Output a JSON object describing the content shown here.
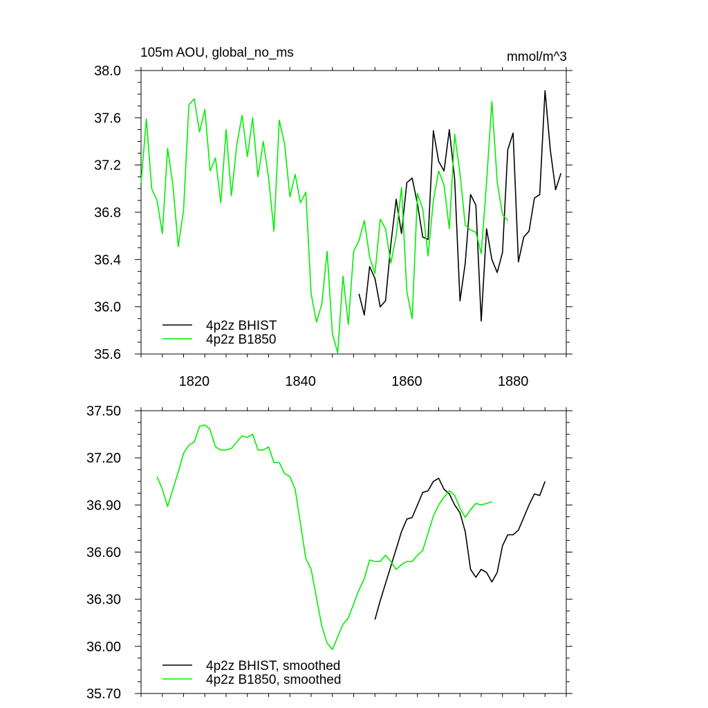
{
  "chart_data": [
    {
      "type": "line",
      "title_left": "105m AOU, global_no_ms",
      "title_right": "mmol/m^3",
      "xlim": [
        1810,
        1890
      ],
      "ylim": [
        35.6,
        38.0
      ],
      "xticks": [
        1820,
        1840,
        1860,
        1880
      ],
      "xtick_labels": [
        "1820",
        "1840",
        "1860",
        "1880"
      ],
      "yticks": [
        35.6,
        36.0,
        36.4,
        36.8,
        37.2,
        37.6,
        38.0
      ],
      "ytick_labels": [
        "35.6",
        "36.0",
        "36.4",
        "36.8",
        "37.2",
        "37.6",
        "38.0"
      ],
      "legend_position": "bottom-left",
      "grid": false,
      "series": [
        {
          "name": "4p2z BHIST",
          "color": "#000000",
          "x": [
            1851,
            1852,
            1853,
            1854,
            1855,
            1856,
            1857,
            1858,
            1859,
            1860,
            1861,
            1862,
            1863,
            1864,
            1865,
            1866,
            1867,
            1868,
            1869,
            1870,
            1871,
            1872,
            1873,
            1874,
            1875,
            1876,
            1877,
            1878,
            1879,
            1880,
            1881,
            1882,
            1883,
            1884,
            1885,
            1886,
            1887,
            1888,
            1889
          ],
          "values": [
            36.11,
            35.93,
            36.34,
            36.24,
            36.0,
            36.05,
            36.53,
            36.91,
            36.62,
            37.05,
            37.09,
            36.87,
            36.59,
            36.57,
            37.49,
            37.23,
            37.15,
            37.5,
            37.08,
            36.05,
            36.37,
            36.95,
            36.86,
            35.88,
            36.66,
            36.4,
            36.29,
            36.46,
            37.33,
            37.47,
            36.38,
            36.59,
            36.64,
            36.92,
            36.95,
            37.83,
            37.33,
            36.99,
            37.13
          ]
        },
        {
          "name": "4p2z B1850",
          "color": "#00ee00",
          "x": [
            1810,
            1811,
            1812,
            1813,
            1814,
            1815,
            1816,
            1817,
            1818,
            1819,
            1820,
            1821,
            1822,
            1823,
            1824,
            1825,
            1826,
            1827,
            1828,
            1829,
            1830,
            1831,
            1832,
            1833,
            1834,
            1835,
            1836,
            1837,
            1838,
            1839,
            1840,
            1841,
            1842,
            1843,
            1844,
            1845,
            1846,
            1847,
            1848,
            1849,
            1850,
            1851,
            1852,
            1853,
            1854,
            1855,
            1856,
            1857,
            1858,
            1859,
            1860,
            1861,
            1862,
            1863,
            1864,
            1865,
            1866,
            1867,
            1868,
            1869,
            1870,
            1871,
            1872,
            1873,
            1874,
            1875,
            1876,
            1877,
            1878,
            1879
          ],
          "values": [
            37.05,
            37.59,
            37.0,
            36.9,
            36.62,
            37.34,
            37.03,
            36.51,
            36.82,
            37.71,
            37.76,
            37.48,
            37.67,
            37.15,
            37.26,
            36.88,
            37.5,
            36.94,
            37.37,
            37.62,
            37.27,
            37.6,
            37.1,
            37.4,
            37.09,
            36.64,
            37.58,
            37.38,
            36.93,
            37.12,
            36.88,
            36.97,
            36.11,
            35.87,
            36.02,
            36.47,
            35.77,
            35.61,
            36.26,
            35.85,
            36.47,
            36.56,
            36.73,
            36.42,
            36.28,
            36.74,
            36.66,
            36.37,
            36.6,
            37.01,
            36.13,
            35.9,
            36.96,
            36.83,
            36.43,
            36.9,
            37.15,
            37.03,
            36.66,
            37.46,
            37.13,
            36.69,
            36.65,
            36.63,
            36.45,
            37.05,
            37.74,
            37.06,
            36.78,
            36.73
          ]
        }
      ]
    },
    {
      "type": "line",
      "xlim": [
        1810,
        1890
      ],
      "ylim": [
        35.7,
        37.5
      ],
      "xticks": [
        1820,
        1840,
        1860,
        1880
      ],
      "yticks": [
        35.7,
        36.0,
        36.3,
        36.6,
        36.9,
        37.2,
        37.5
      ],
      "ytick_labels": [
        "35.70",
        "36.00",
        "36.30",
        "36.60",
        "36.90",
        "37.20",
        "37.50"
      ],
      "legend_position": "bottom-left",
      "grid": false,
      "series": [
        {
          "name": "4p2z BHIST, smoothed",
          "color": "#000000",
          "x": [
            1854,
            1855,
            1856,
            1857,
            1858,
            1859,
            1860,
            1861,
            1862,
            1863,
            1864,
            1865,
            1866,
            1867,
            1868,
            1869,
            1870,
            1871,
            1872,
            1873,
            1874,
            1875,
            1876,
            1877,
            1878,
            1879,
            1880,
            1881,
            1882,
            1883,
            1884,
            1885,
            1886
          ],
          "values": [
            36.17,
            36.29,
            36.4,
            36.51,
            36.62,
            36.73,
            36.81,
            36.82,
            36.9,
            36.98,
            36.99,
            37.05,
            37.07,
            37.0,
            36.97,
            36.9,
            36.85,
            36.73,
            36.49,
            36.44,
            36.49,
            36.47,
            36.41,
            36.47,
            36.64,
            36.71,
            36.71,
            36.74,
            36.82,
            36.9,
            36.97,
            36.96,
            37.05
          ]
        },
        {
          "name": "4p2z B1850, smoothed",
          "color": "#00ee00",
          "x": [
            1813,
            1814,
            1815,
            1816,
            1817,
            1818,
            1819,
            1820,
            1821,
            1822,
            1823,
            1824,
            1825,
            1826,
            1827,
            1828,
            1829,
            1830,
            1831,
            1832,
            1833,
            1834,
            1835,
            1836,
            1837,
            1838,
            1839,
            1840,
            1841,
            1842,
            1843,
            1844,
            1845,
            1846,
            1847,
            1848,
            1849,
            1850,
            1851,
            1852,
            1853,
            1854,
            1855,
            1856,
            1857,
            1858,
            1859,
            1860,
            1861,
            1862,
            1863,
            1864,
            1865,
            1866,
            1867,
            1868,
            1869,
            1870,
            1871,
            1872,
            1873,
            1874,
            1875,
            1876
          ],
          "values": [
            37.08,
            37.0,
            36.89,
            37.0,
            37.11,
            37.23,
            37.28,
            37.3,
            37.4,
            37.41,
            37.38,
            37.27,
            37.25,
            37.25,
            37.26,
            37.3,
            37.34,
            37.33,
            37.35,
            37.25,
            37.25,
            37.27,
            37.17,
            37.17,
            37.1,
            37.08,
            37.0,
            36.78,
            36.56,
            36.49,
            36.31,
            36.13,
            36.02,
            35.98,
            36.06,
            36.14,
            36.18,
            36.27,
            36.36,
            36.43,
            36.55,
            36.54,
            36.54,
            36.58,
            36.54,
            36.49,
            36.52,
            36.54,
            36.54,
            36.58,
            36.61,
            36.72,
            36.83,
            36.9,
            36.95,
            36.99,
            36.96,
            36.88,
            36.82,
            36.87,
            36.91,
            36.9,
            36.91,
            36.92
          ]
        }
      ]
    }
  ]
}
